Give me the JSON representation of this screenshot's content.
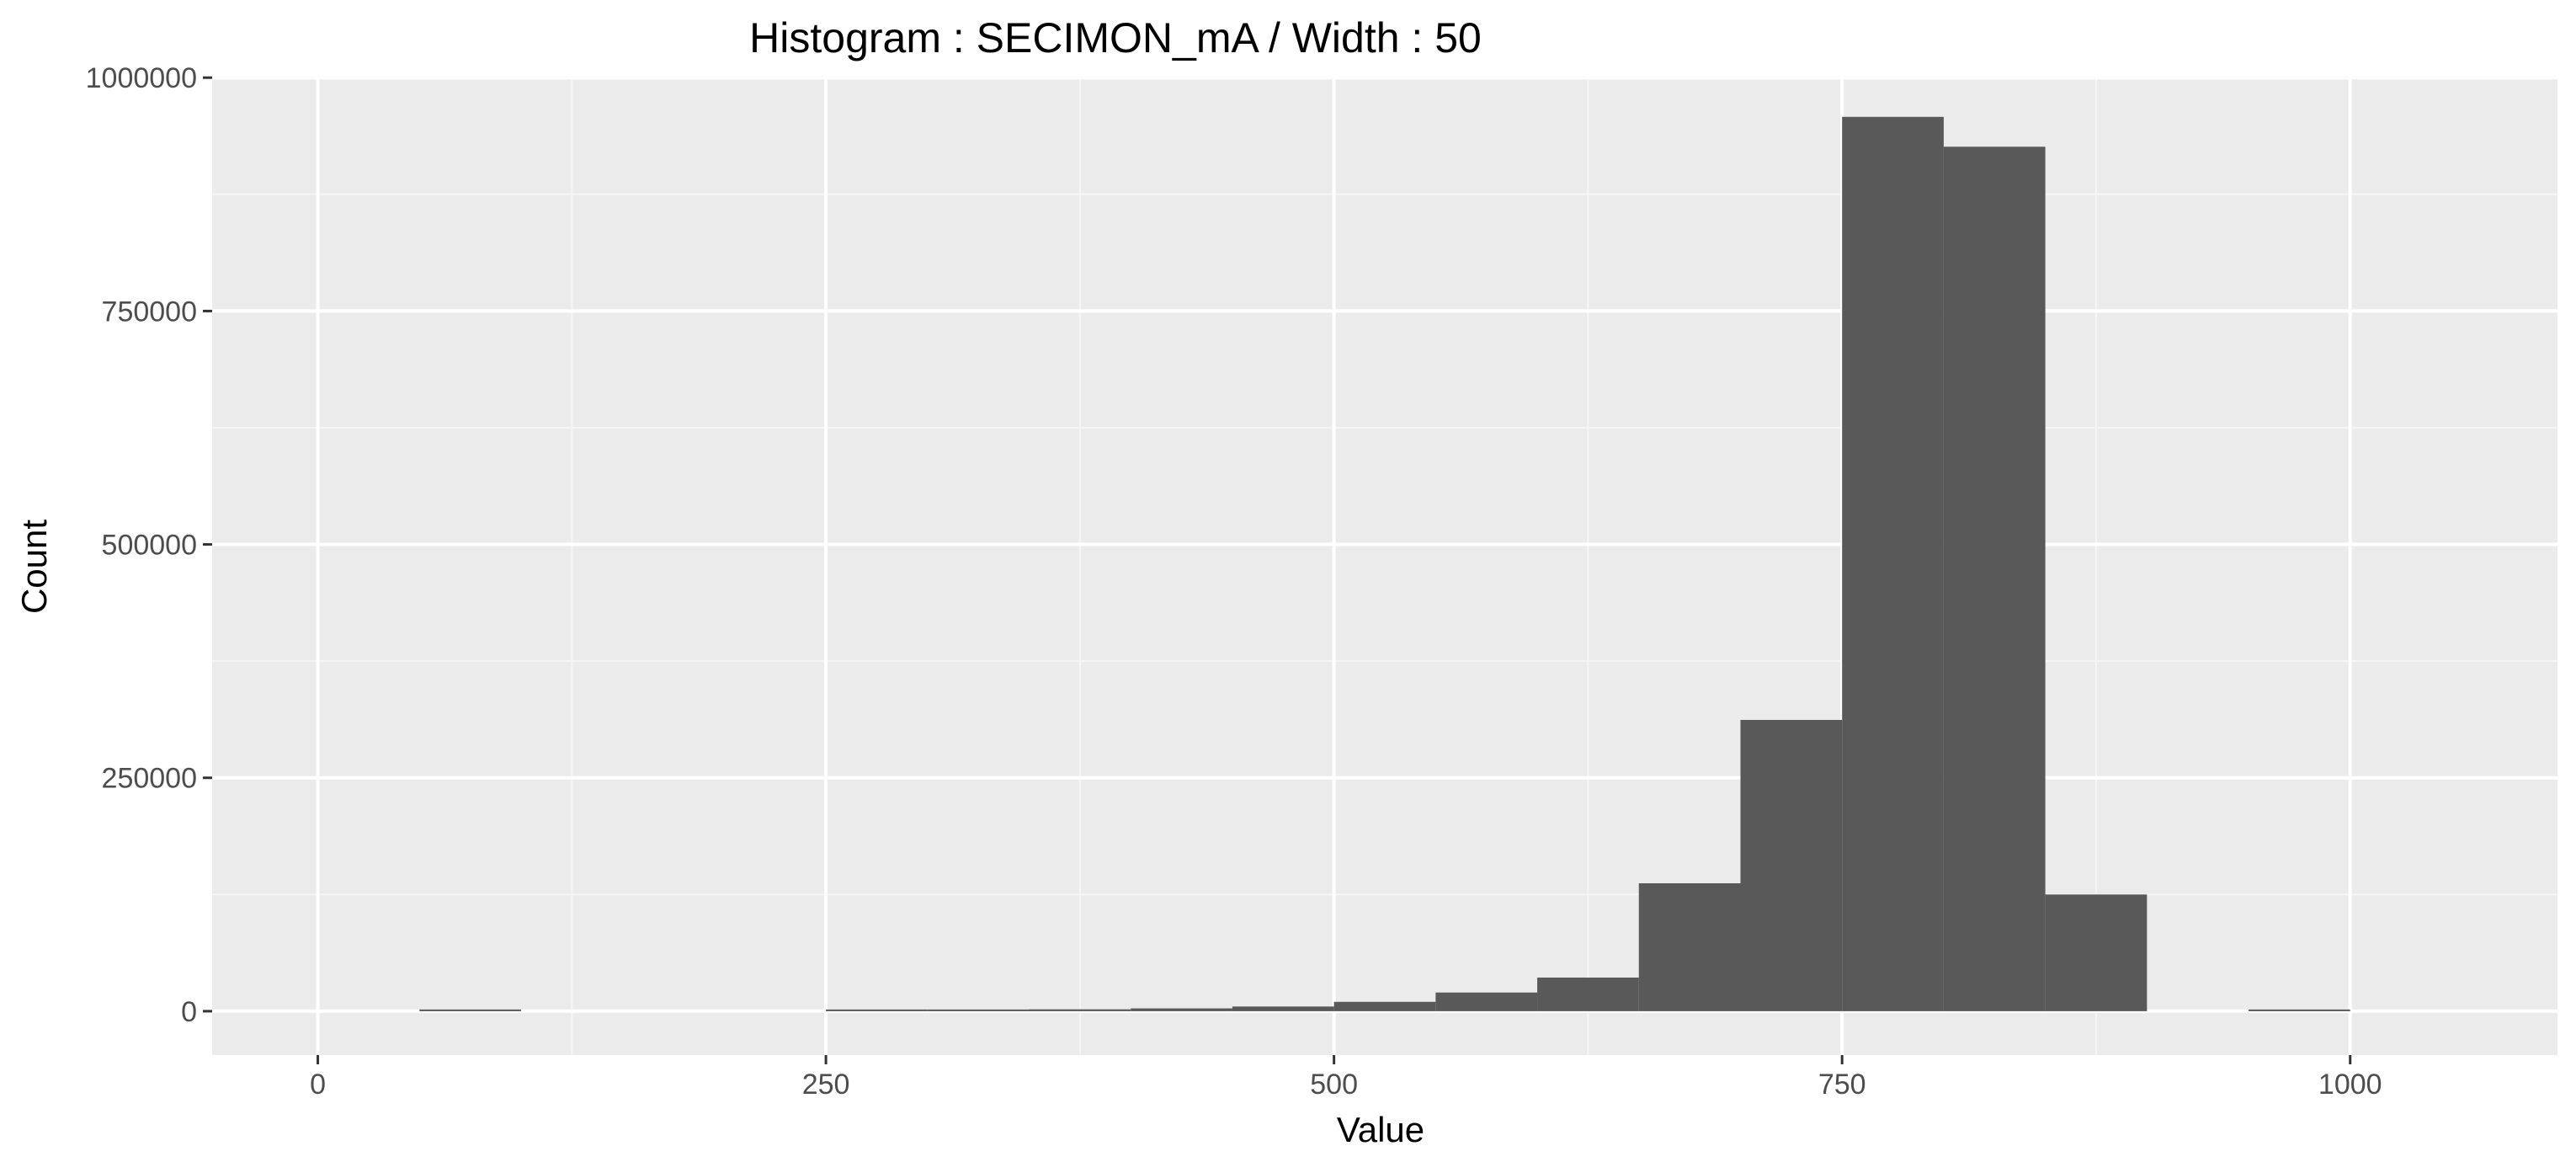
{
  "chart_data": {
    "type": "bar",
    "title": "Histogram : SECIMON_mA / Width : 50",
    "xlabel": "Value",
    "ylabel": "Count",
    "bin_width": 50,
    "bins": [
      {
        "x0": 50,
        "x1": 100,
        "count": 1500
      },
      {
        "x0": 250,
        "x1": 300,
        "count": 800
      },
      {
        "x0": 300,
        "x1": 350,
        "count": 1500
      },
      {
        "x0": 350,
        "x1": 400,
        "count": 2000
      },
      {
        "x0": 400,
        "x1": 450,
        "count": 3000
      },
      {
        "x0": 450,
        "x1": 500,
        "count": 5000
      },
      {
        "x0": 500,
        "x1": 550,
        "count": 10000
      },
      {
        "x0": 550,
        "x1": 600,
        "count": 20000
      },
      {
        "x0": 600,
        "x1": 650,
        "count": 36000
      },
      {
        "x0": 650,
        "x1": 700,
        "count": 137000
      },
      {
        "x0": 700,
        "x1": 750,
        "count": 312000
      },
      {
        "x0": 750,
        "x1": 800,
        "count": 958000
      },
      {
        "x0": 800,
        "x1": 850,
        "count": 926000
      },
      {
        "x0": 850,
        "x1": 900,
        "count": 125000
      },
      {
        "x0": 950,
        "x1": 1000,
        "count": 1500
      }
    ],
    "xlim": [
      -52,
      1102
    ],
    "ylim": [
      -47000,
      1002000
    ],
    "x_ticks": [
      0,
      250,
      500,
      750,
      1000
    ],
    "x_tick_labels": [
      "0",
      "250",
      "500",
      "750",
      "1000"
    ],
    "x_minor": [
      125,
      375,
      625,
      875
    ],
    "y_ticks": [
      0,
      250000,
      500000,
      750000,
      1000000
    ],
    "y_tick_labels": [
      "0",
      "250000",
      "500000",
      "750000",
      "1000000"
    ],
    "y_minor": [
      125000,
      375000,
      625000,
      875000
    ],
    "grid": true,
    "colors": {
      "panel_bg": "#ebebeb",
      "grid_major": "#ffffff",
      "grid_minor": "#f5f5f5",
      "bar_fill": "#595959",
      "tick_mark": "#333333"
    }
  }
}
